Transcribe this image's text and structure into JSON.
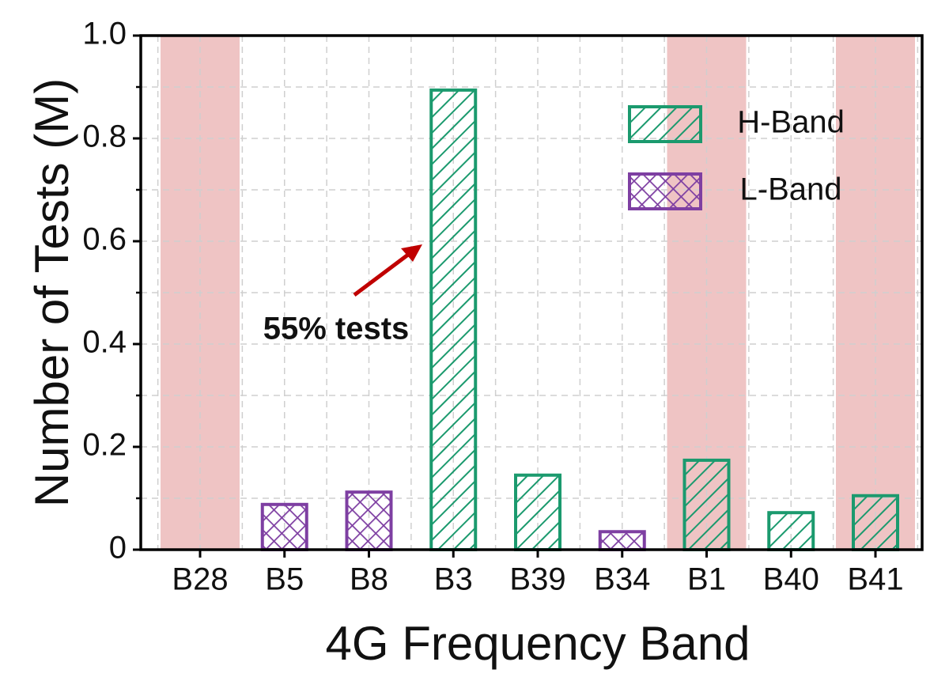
{
  "chart_data": {
    "type": "bar",
    "xlabel": "4G Frequency Band",
    "ylabel": "Number of Tests (M)",
    "categories": [
      "B28",
      "B5",
      "B8",
      "B3",
      "B39",
      "B34",
      "B1",
      "B40",
      "B41"
    ],
    "series": [
      {
        "name": "H-Band",
        "color": "#1b9a6e",
        "pattern": "diagonal",
        "values": [
          null,
          null,
          null,
          0.894,
          0.145,
          null,
          0.174,
          0.072,
          0.105
        ]
      },
      {
        "name": "L-Band",
        "color": "#7e3fa2",
        "pattern": "crosshatch",
        "values": [
          null,
          0.088,
          0.112,
          null,
          null,
          0.035,
          null,
          null,
          null
        ]
      }
    ],
    "ylim": [
      0,
      1
    ],
    "yticks": [
      0,
      0.2,
      0.4,
      0.6,
      0.8,
      {
        "value": 1,
        "label": "1.0"
      }
    ],
    "grid": true,
    "highlight": [
      0,
      6,
      8
    ],
    "highlight_color": "#efc4c4",
    "legend": "upper right",
    "annotation": {
      "text": "55% tests",
      "color": "#c00000"
    }
  }
}
